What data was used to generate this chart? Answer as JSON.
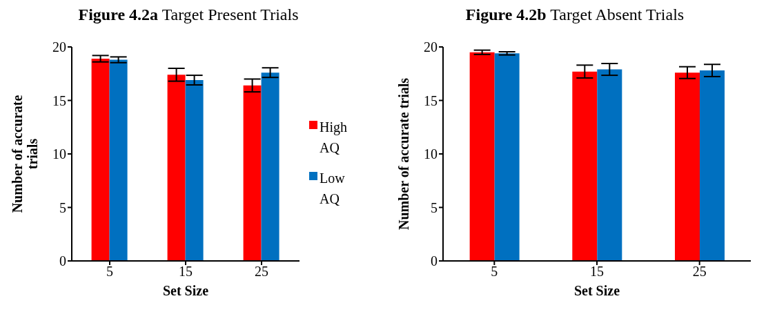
{
  "chart_data": [
    {
      "type": "bar",
      "title": "Figure 4.2a Target Present Trials",
      "xlabel": "Set Size",
      "ylabel": "Number of accurate trials",
      "categories": [
        "5",
        "15",
        "25"
      ],
      "series": [
        {
          "name": "High AQ",
          "color": "#ff0000",
          "values": [
            18.9,
            17.4,
            16.4
          ],
          "errors": [
            0.3,
            0.6,
            0.6
          ]
        },
        {
          "name": "Low AQ",
          "color": "#0070c0",
          "values": [
            18.8,
            16.9,
            17.6
          ],
          "errors": [
            0.27,
            0.45,
            0.45
          ]
        }
      ],
      "ylim": [
        0,
        20
      ],
      "yticks": [
        0,
        5,
        10,
        15,
        20
      ],
      "grid": false,
      "legend": "right"
    },
    {
      "type": "bar",
      "title": "Figure 4.2b Target Absent Trials",
      "xlabel": "Set Size",
      "ylabel": "Number of accurate trials",
      "categories": [
        "5",
        "15",
        "25"
      ],
      "series": [
        {
          "color": "#ff0000",
          "values": [
            19.5,
            17.7,
            17.6
          ],
          "errors": [
            0.2,
            0.6,
            0.55
          ]
        },
        {
          "color": "#0070c0",
          "values": [
            19.4,
            17.9,
            17.8
          ],
          "errors": [
            0.15,
            0.55,
            0.57
          ]
        }
      ],
      "ylim": [
        0,
        20
      ],
      "yticks": [
        0,
        5,
        10,
        15,
        20
      ],
      "grid": false,
      "legend": false
    }
  ]
}
